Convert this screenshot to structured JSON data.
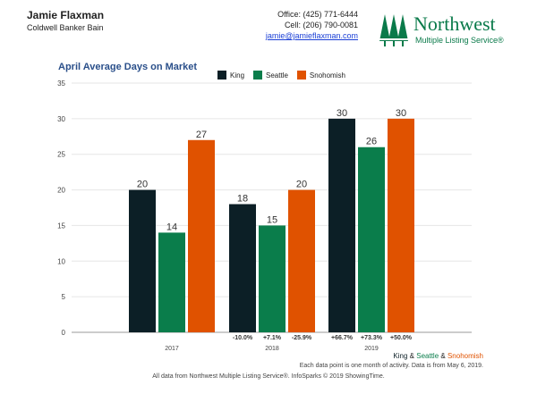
{
  "header": {
    "agent_name": "Jamie Flaxman",
    "agent_company": "Coldwell Banker Bain",
    "office": "Office: (425) 771-6444",
    "cell": "Cell: (206) 790-0081",
    "email": "jamie@jamieflaxman.com"
  },
  "logo": {
    "name": "Northwest",
    "sub": "Multiple Listing Service®",
    "icon": "tree-icon",
    "color": "#0a7a4a"
  },
  "colors": {
    "King": "#0c1f26",
    "Seattle": "#0a7d4b",
    "Snohomish": "#e05200",
    "title": "#2a4f8a",
    "grid": "#e6e6e6"
  },
  "chart_data": {
    "type": "bar",
    "title": "April Average Days on Market",
    "categories": [
      "2017",
      "2018",
      "2019"
    ],
    "series": [
      {
        "name": "King",
        "values": [
          20,
          18,
          30
        ]
      },
      {
        "name": "Seattle",
        "values": [
          14,
          15,
          26
        ]
      },
      {
        "name": "Snohomish",
        "values": [
          27,
          20,
          30
        ]
      }
    ],
    "yticks": [
      0,
      5,
      10,
      15,
      20,
      25,
      30,
      35
    ],
    "ylim": [
      0,
      35
    ],
    "grid": true,
    "legend": "top",
    "changes": [
      [],
      [
        "-10.0%",
        "+7.1%",
        "-25.9%"
      ],
      [
        "+66.7%",
        "+73.3%",
        "+50.0%"
      ]
    ]
  },
  "footer": {
    "legend_names": [
      "King",
      "Seattle",
      "Snohomish"
    ],
    "legend_sep": "&",
    "note": "Each data point is one month of activity. Data is from May 6, 2019.",
    "credit": "All data from Northwest Multiple Listing Service®. InfoSparks © 2019 ShowingTime."
  }
}
